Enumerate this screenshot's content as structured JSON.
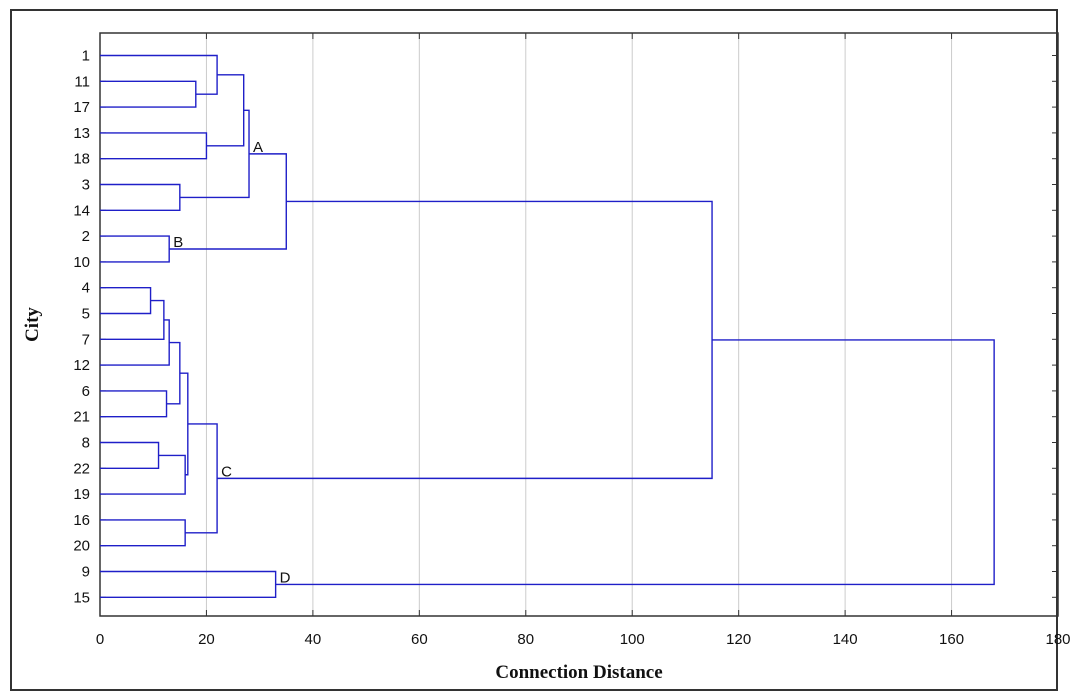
{
  "chart_data": {
    "type": "dendrogram",
    "title": "",
    "xlabel": "Connection Distance",
    "ylabel": "City",
    "xlim": [
      0,
      180
    ],
    "xticks": [
      0,
      20,
      40,
      60,
      80,
      100,
      120,
      140,
      160,
      180
    ],
    "grid": "vertical",
    "line_color": "#1f1fc8",
    "leaves": [
      "1",
      "11",
      "17",
      "13",
      "18",
      "3",
      "14",
      "2",
      "10",
      "4",
      "5",
      "7",
      "12",
      "6",
      "21",
      "8",
      "22",
      "19",
      "16",
      "20",
      "9",
      "15"
    ],
    "merges": [
      {
        "id": "m11_17",
        "left": "11",
        "right": "17",
        "distance": 18
      },
      {
        "id": "m1_11_17",
        "left": "1",
        "right": "m11_17",
        "distance": 22
      },
      {
        "id": "m13_18",
        "left": "13",
        "right": "18",
        "distance": 20
      },
      {
        "id": "m1_18",
        "left": "m1_11_17",
        "right": "m13_18",
        "distance": 27
      },
      {
        "id": "m3_14",
        "left": "3",
        "right": "14",
        "distance": 15
      },
      {
        "id": "mA",
        "left": "m1_18",
        "right": "m3_14",
        "distance": 28,
        "label": "A"
      },
      {
        "id": "mB",
        "left": "2",
        "right": "10",
        "distance": 13,
        "label": "B"
      },
      {
        "id": "mAB",
        "left": "mA",
        "right": "mB",
        "distance": 35
      },
      {
        "id": "m4_5",
        "left": "4",
        "right": "5",
        "distance": 9.5
      },
      {
        "id": "m4_5_7",
        "left": "m4_5",
        "right": "7",
        "distance": 12
      },
      {
        "id": "m4_12",
        "left": "m4_5_7",
        "right": "12",
        "distance": 13
      },
      {
        "id": "m6_21",
        "left": "6",
        "right": "21",
        "distance": 12.5
      },
      {
        "id": "m4_21",
        "left": "m4_12",
        "right": "m6_21",
        "distance": 15
      },
      {
        "id": "m8_22",
        "left": "8",
        "right": "22",
        "distance": 11
      },
      {
        "id": "m8_19",
        "left": "m8_22",
        "right": "19",
        "distance": 16
      },
      {
        "id": "m4_19",
        "left": "m4_21",
        "right": "m8_19",
        "distance": 16.5
      },
      {
        "id": "m16_20",
        "left": "16",
        "right": "20",
        "distance": 16
      },
      {
        "id": "mC",
        "left": "m4_19",
        "right": "m16_20",
        "distance": 22,
        "label": "C"
      },
      {
        "id": "mABC",
        "left": "mAB",
        "right": "mC",
        "distance": 115
      },
      {
        "id": "mD",
        "left": "9",
        "right": "15",
        "distance": 33,
        "label": "D"
      },
      {
        "id": "mRoot",
        "left": "mABC",
        "right": "mD",
        "distance": 168
      }
    ]
  }
}
